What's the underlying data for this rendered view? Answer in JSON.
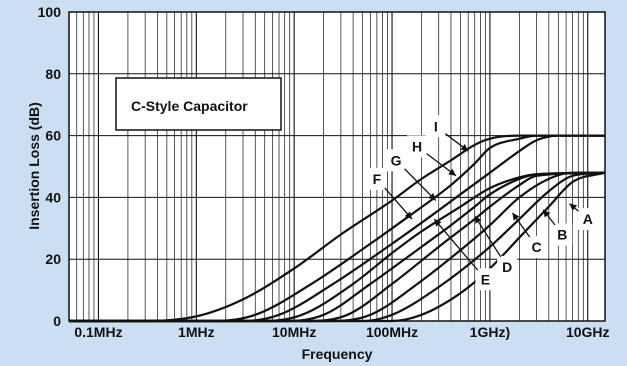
{
  "chart_data": {
    "type": "line",
    "title": "",
    "xlabel": "Frequency",
    "ylabel": "Insertion Loss (dB)",
    "x_scale": "log",
    "x_unit": "Hz",
    "xlim": [
      50000,
      15000000000
    ],
    "ylim": [
      0,
      100
    ],
    "x_ticks": [
      {
        "value": 100000,
        "label": "0.1MHz"
      },
      {
        "value": 1000000,
        "label": "1MHz"
      },
      {
        "value": 10000000,
        "label": "10MHz"
      },
      {
        "value": 100000000,
        "label": "100MHz"
      },
      {
        "value": 1000000000,
        "label": "1GHz)"
      },
      {
        "value": 10000000000,
        "label": "10GHz"
      }
    ],
    "y_ticks": [
      0,
      20,
      40,
      60,
      80,
      100
    ],
    "grid": true,
    "annotation": "C-Style Capacitor",
    "series": [
      {
        "name": "A",
        "points": [
          [
            50000,
            0
          ],
          [
            100000000,
            0
          ],
          [
            200000000,
            2
          ],
          [
            500000000,
            9
          ],
          [
            1000000000,
            17
          ],
          [
            2000000000,
            27
          ],
          [
            4000000000,
            37
          ],
          [
            7000000000,
            45
          ],
          [
            15000000000,
            48
          ]
        ]
      },
      {
        "name": "B",
        "points": [
          [
            50000,
            0
          ],
          [
            50000000,
            0
          ],
          [
            100000000,
            2
          ],
          [
            300000000,
            11
          ],
          [
            1000000000,
            24
          ],
          [
            2000000000,
            33
          ],
          [
            4000000000,
            42
          ],
          [
            7000000000,
            47
          ],
          [
            15000000000,
            48
          ]
        ]
      },
      {
        "name": "C",
        "points": [
          [
            50000,
            0
          ],
          [
            25000000,
            0
          ],
          [
            60000000,
            2
          ],
          [
            200000000,
            13
          ],
          [
            600000000,
            25
          ],
          [
            1000000000,
            31
          ],
          [
            2000000000,
            40
          ],
          [
            4000000000,
            46
          ],
          [
            7000000000,
            48
          ],
          [
            15000000000,
            48
          ]
        ]
      },
      {
        "name": "D",
        "points": [
          [
            50000,
            0
          ],
          [
            15000000,
            0
          ],
          [
            35000000,
            2
          ],
          [
            100000000,
            12
          ],
          [
            300000000,
            24
          ],
          [
            700000000,
            33
          ],
          [
            1000000000,
            37
          ],
          [
            2000000000,
            44
          ],
          [
            3000000000,
            47
          ],
          [
            15000000000,
            48
          ]
        ]
      },
      {
        "name": "E",
        "points": [
          [
            50000,
            0
          ],
          [
            8000000,
            0
          ],
          [
            20000000,
            2
          ],
          [
            60000000,
            12
          ],
          [
            200000000,
            24
          ],
          [
            400000000,
            31
          ],
          [
            700000000,
            37
          ],
          [
            1000000000,
            41
          ],
          [
            2000000000,
            46
          ],
          [
            3000000000,
            47.5
          ],
          [
            15000000000,
            48
          ]
        ]
      },
      {
        "name": "F",
        "points": [
          [
            50000,
            0
          ],
          [
            5000000,
            0
          ],
          [
            12000000,
            2
          ],
          [
            40000000,
            12
          ],
          [
            100000000,
            22
          ],
          [
            200000000,
            29
          ],
          [
            500000000,
            37
          ],
          [
            1000000000,
            43
          ],
          [
            2000000000,
            46.5
          ],
          [
            3000000000,
            47.5
          ],
          [
            15000000000,
            48
          ]
        ]
      },
      {
        "name": "G",
        "points": [
          [
            50000,
            0
          ],
          [
            3000000,
            0
          ],
          [
            7000000,
            2
          ],
          [
            25000000,
            12
          ],
          [
            100000000,
            25
          ],
          [
            250000000,
            34
          ],
          [
            500000000,
            41
          ],
          [
            1000000000,
            48
          ],
          [
            2000000000,
            55
          ],
          [
            3000000000,
            58.5
          ],
          [
            5000000000,
            60
          ],
          [
            15000000000,
            60
          ]
        ]
      },
      {
        "name": "H",
        "points": [
          [
            50000,
            0
          ],
          [
            1500000,
            0
          ],
          [
            4000000,
            2
          ],
          [
            15000000,
            12
          ],
          [
            60000000,
            25
          ],
          [
            150000000,
            34
          ],
          [
            400000000,
            44
          ],
          [
            700000000,
            51
          ],
          [
            1000000000,
            56
          ],
          [
            2000000000,
            59
          ],
          [
            3000000000,
            60
          ],
          [
            15000000000,
            60
          ]
        ]
      },
      {
        "name": "I",
        "points": [
          [
            50000,
            0
          ],
          [
            300000,
            0
          ],
          [
            1000000,
            1.5
          ],
          [
            3000000,
            7
          ],
          [
            10000000,
            17
          ],
          [
            30000000,
            28
          ],
          [
            100000000,
            39
          ],
          [
            200000000,
            46
          ],
          [
            400000000,
            52
          ],
          [
            700000000,
            57
          ],
          [
            1000000000,
            59
          ],
          [
            2000000000,
            60
          ],
          [
            15000000000,
            60
          ]
        ]
      }
    ],
    "series_labels": [
      {
        "name": "A",
        "label_x": 10000000000,
        "label_y": 33,
        "pointer_x": 6500000000,
        "pointer_y": 38
      },
      {
        "name": "B",
        "label_x": 5500000000,
        "label_y": 28,
        "pointer_x": 3500000000,
        "pointer_y": 36
      },
      {
        "name": "C",
        "label_x": 3000000000,
        "label_y": 24,
        "pointer_x": 1700000000,
        "pointer_y": 35
      },
      {
        "name": "D",
        "label_x": 1500000000,
        "label_y": 17.5,
        "pointer_x": 700000000,
        "pointer_y": 34
      },
      {
        "name": "E",
        "label_x": 900000000,
        "label_y": 13.5,
        "pointer_x": 270000000,
        "pointer_y": 33
      },
      {
        "name": "F",
        "label_x": 70000000,
        "label_y": 46,
        "pointer_x": 160000000,
        "pointer_y": 33
      },
      {
        "name": "G",
        "label_x": 110000000,
        "label_y": 52,
        "pointer_x": 280000000,
        "pointer_y": 39
      },
      {
        "name": "H",
        "label_x": 180000000,
        "label_y": 56.5,
        "pointer_x": 450000000,
        "pointer_y": 47
      },
      {
        "name": "I",
        "label_x": 280000000,
        "label_y": 63,
        "pointer_x": 600000000,
        "pointer_y": 55
      }
    ],
    "colors": {
      "background": "#ccdff2",
      "plot": "#ffffff",
      "line": "#111111"
    }
  }
}
